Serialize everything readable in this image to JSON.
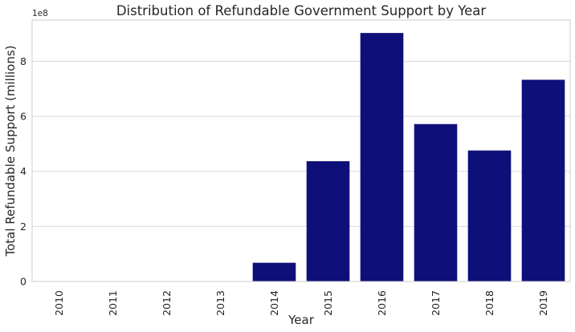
{
  "chart_data": {
    "type": "bar",
    "title": "Distribution of Refundable Government Support by Year",
    "xlabel": "Year",
    "ylabel": "Total Refundable Support (millions)",
    "y_offset_label": "1e8",
    "categories": [
      "2010",
      "2011",
      "2012",
      "2013",
      "2014",
      "2015",
      "2016",
      "2017",
      "2018",
      "2019"
    ],
    "values": [
      0,
      0,
      0,
      0,
      68000000,
      437000000,
      903000000,
      572000000,
      476000000,
      733000000
    ],
    "ylim": [
      0,
      950000000
    ],
    "yticks": [
      0,
      200000000,
      400000000,
      600000000,
      800000000
    ],
    "ytick_labels": [
      "0",
      "2",
      "4",
      "6",
      "8"
    ],
    "grid": true,
    "bar_color": "#0f0f7a",
    "grid_color": "#d9d9d9",
    "axis_color": "#cccccc"
  }
}
